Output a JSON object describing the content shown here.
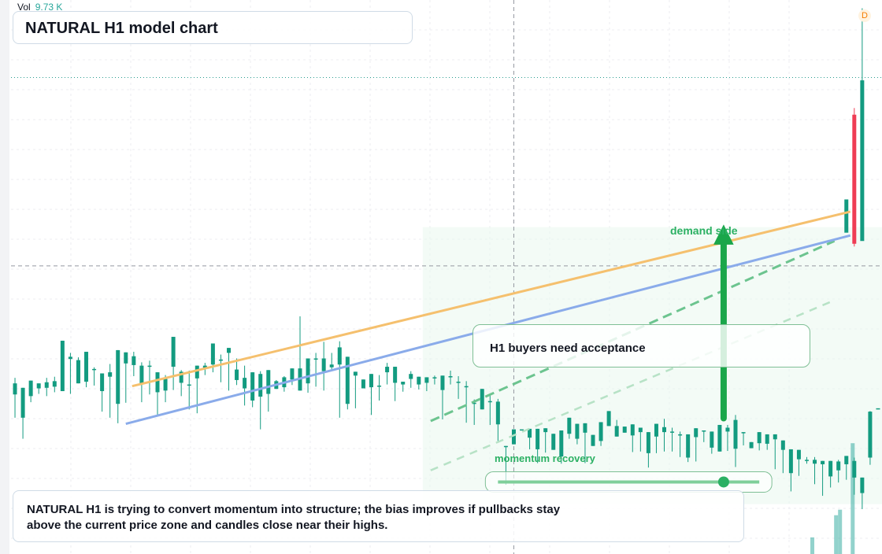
{
  "header": {
    "vol_label": "Vol",
    "vol_value": "9.73 K",
    "badge": "D",
    "title": "NATURAL H1 model chart"
  },
  "annotations": {
    "demand_label": "demand side",
    "momentum_label": "momentum recovery",
    "callout": "H1 buyers need acceptance",
    "description": "NATURAL H1 is trying to convert momentum into structure; the bias improves if pullbacks stay above the current price zone and candles close near their highs."
  },
  "colors": {
    "up": "#139b80",
    "down": "#ef3d54",
    "accent_green": "#1aa64a",
    "ma_orange": "#f5c06e",
    "ma_blue": "#8aabea"
  },
  "chart_data": {
    "type": "candlestick",
    "title": "NATURAL H1 model chart",
    "ylim": [
      0,
      100
    ],
    "xlim": [
      0,
      110
    ],
    "levels": [
      {
        "name": "dotted-resistance",
        "value": 86
      },
      {
        "name": "crosshair",
        "value": 52
      }
    ],
    "crosshair_x": 63.5,
    "lines": [
      {
        "name": "ma-orange",
        "points": [
          [
            15.3,
            30.3
          ],
          [
            106,
            61.8
          ]
        ]
      },
      {
        "name": "ma-blue",
        "points": [
          [
            14.5,
            23.5
          ],
          [
            106,
            57.5
          ]
        ]
      },
      {
        "name": "trend-upper",
        "points": [
          [
            53,
            24
          ],
          [
            104,
            56.5
          ]
        ]
      },
      {
        "name": "trend-lower",
        "points": [
          [
            53,
            15.1
          ],
          [
            104,
            45.8
          ]
        ]
      }
    ],
    "zones": [
      {
        "name": "demand-zone",
        "x": [
          52,
          110
        ],
        "y": [
          9,
          59
        ]
      }
    ],
    "arrows": [
      {
        "name": "demand-arrow",
        "x": 90,
        "from": 24.5,
        "to": 62
      }
    ],
    "support_markers": [
      {
        "name": "momentum-recovery-line",
        "x": [
          61.5,
          94.5
        ],
        "y": 13,
        "dot_x": 90
      }
    ],
    "candles": [
      [
        28.8,
        30.8,
        24.6,
        31.8
      ],
      [
        24.6,
        30.0,
        20.8,
        30.0
      ],
      [
        28.5,
        31.3,
        27.4,
        31.3
      ],
      [
        29.9,
        30.8,
        28.9,
        30.8
      ],
      [
        30.0,
        31.0,
        28.5,
        31.8
      ],
      [
        30.2,
        31.2,
        29.2,
        32.0
      ],
      [
        29.4,
        38.5,
        29.4,
        38.5
      ],
      [
        35.2,
        35.6,
        28.9,
        36.3
      ],
      [
        30.8,
        35.0,
        30.8,
        35.5
      ],
      [
        31.1,
        36.5,
        30.1,
        36.5
      ],
      [
        33.4,
        33.4,
        30.4,
        33.7
      ],
      [
        29.4,
        32.6,
        25.7,
        32.6
      ],
      [
        32.0,
        32.8,
        24.6,
        34.3
      ],
      [
        27.1,
        36.8,
        23.6,
        36.8
      ],
      [
        34.4,
        36.4,
        27.3,
        36.4
      ],
      [
        34.1,
        35.7,
        32.1,
        36.5
      ],
      [
        30.7,
        34.0,
        27.4,
        34.6
      ],
      [
        34.0,
        34.0,
        28.8,
        34.9
      ],
      [
        29.2,
        32.8,
        24.9,
        32.8
      ],
      [
        29.5,
        31.6,
        27.4,
        32.3
      ],
      [
        33.8,
        39.2,
        29.6,
        39.2
      ],
      [
        30.9,
        32.9,
        28.5,
        33.2
      ],
      [
        30.6,
        30.6,
        26.1,
        33.1
      ],
      [
        31.7,
        34.0,
        25.4,
        34.0
      ],
      [
        33.6,
        34.0,
        32.3,
        34.5
      ],
      [
        34.2,
        38.0,
        32.8,
        38.0
      ],
      [
        34.9,
        35.1,
        31.0,
        36.0
      ],
      [
        36.3,
        37.2,
        29.5,
        37.2
      ],
      [
        31.4,
        33.3,
        30.5,
        35.3
      ],
      [
        29.9,
        31.8,
        26.8,
        34.0
      ],
      [
        27.7,
        32.8,
        26.5,
        32.8
      ],
      [
        28.4,
        32.5,
        22.5,
        33.0
      ],
      [
        28.9,
        33.2,
        25.7,
        33.2
      ],
      [
        29.8,
        31.2,
        29.8,
        31.4
      ],
      [
        30.1,
        31.9,
        29.3,
        32.1
      ],
      [
        31.5,
        33.5,
        30.5,
        33.5
      ],
      [
        29.5,
        33.5,
        29.5,
        42.9
      ],
      [
        30.8,
        35.3,
        29.1,
        35.3
      ],
      [
        35.3,
        35.3,
        30.2,
        36.3
      ],
      [
        33.0,
        35.3,
        29.5,
        38.3
      ],
      [
        33.7,
        34.2,
        33.0,
        36.3
      ],
      [
        34.2,
        37.3,
        24.6,
        38.4
      ],
      [
        27.1,
        35.6,
        26.1,
        35.6
      ],
      [
        32.2,
        32.9,
        26.3,
        32.9
      ],
      [
        29.9,
        31.5,
        29.9,
        31.5
      ],
      [
        30.1,
        32.5,
        25.1,
        32.5
      ],
      [
        30.4,
        30.4,
        27.7,
        32.3
      ],
      [
        32.8,
        33.8,
        30.6,
        34.5
      ],
      [
        30.9,
        33.8,
        27.6,
        33.8
      ],
      [
        30.6,
        31.1,
        29.3,
        31.1
      ],
      [
        31.6,
        32.5,
        30.0,
        33.0
      ],
      [
        30.6,
        32.0,
        29.7,
        32.0
      ],
      [
        30.9,
        31.9,
        29.4,
        31.9
      ],
      [
        31.9,
        31.9,
        30.6,
        32.2
      ],
      [
        29.6,
        32.2,
        24.3,
        32.2
      ],
      [
        32.1,
        32.1,
        30.6,
        33.1
      ],
      [
        31.1,
        31.1,
        28.0,
        32.1
      ],
      [
        30.3,
        30.3,
        23.7,
        31.2
      ],
      [
        27.3,
        27.3,
        23.3,
        27.9
      ],
      [
        26.1,
        29.8,
        26.1,
        29.8
      ],
      [
        27.6,
        27.6,
        23.3,
        28.7
      ],
      [
        23.4,
        27.5,
        20.4,
        28.0
      ],
      [
        19.5,
        19.5,
        12.5,
        19.5
      ],
      [
        19.8,
        22.5,
        19.8,
        22.5
      ],
      [
        22.5,
        22.5,
        22.5,
        22.5
      ],
      [
        21.0,
        22.6,
        18.9,
        22.6
      ],
      [
        18.9,
        22.6,
        16.4,
        22.6
      ],
      [
        22.0,
        22.7,
        18.3,
        22.7
      ],
      [
        18.8,
        21.7,
        18.8,
        21.7
      ],
      [
        17.6,
        22.3,
        16.3,
        22.3
      ],
      [
        21.7,
        24.6,
        20.8,
        24.6
      ],
      [
        20.8,
        23.5,
        19.8,
        23.5
      ],
      [
        21.9,
        23.6,
        16.4,
        23.6
      ],
      [
        19.5,
        21.5,
        19.5,
        21.5
      ],
      [
        20.4,
        23.8,
        19.5,
        23.8
      ],
      [
        23.1,
        25.8,
        23.1,
        25.8
      ],
      [
        21.2,
        23.1,
        21.2,
        24.2
      ],
      [
        21.9,
        23.0,
        21.9,
        23.0
      ],
      [
        21.4,
        23.4,
        18.4,
        23.4
      ],
      [
        22.0,
        22.8,
        18.5,
        22.8
      ],
      [
        18.2,
        22.0,
        15.6,
        22.0
      ],
      [
        21.2,
        23.5,
        18.2,
        23.5
      ],
      [
        22.0,
        22.9,
        18.5,
        24.4
      ],
      [
        22.1,
        22.1,
        18.5,
        22.8
      ],
      [
        21.6,
        21.6,
        17.5,
        22.1
      ],
      [
        17.4,
        21.6,
        16.6,
        21.6
      ],
      [
        21.1,
        22.7,
        16.7,
        22.7
      ],
      [
        22.3,
        22.3,
        20.2,
        22.3
      ],
      [
        19.2,
        22.1,
        18.1,
        22.1
      ],
      [
        18.5,
        23.3,
        18.5,
        23.3
      ],
      [
        22.1,
        22.8,
        18.6,
        23.3
      ],
      [
        19.0,
        24.2,
        15.7,
        25.1
      ],
      [
        22.0,
        22.0,
        19.6,
        22.0
      ],
      [
        19.1,
        20.2,
        19.1,
        20.2
      ],
      [
        20.0,
        22.0,
        18.7,
        22.0
      ],
      [
        19.9,
        21.6,
        18.8,
        21.6
      ],
      [
        20.7,
        21.6,
        15.3,
        21.6
      ],
      [
        18.8,
        20.5,
        14.6,
        20.5
      ],
      [
        14.6,
        18.9,
        11.3,
        18.9
      ],
      [
        17.1,
        18.8,
        14.1,
        18.8
      ],
      [
        17.0,
        17.0,
        16.3,
        17.5
      ],
      [
        16.3,
        17.0,
        12.6,
        17.5
      ],
      [
        16.2,
        16.8,
        10.5,
        16.8
      ],
      [
        14.0,
        16.8,
        12.0,
        16.8
      ],
      [
        15.1,
        16.7,
        12.9,
        17.0
      ],
      [
        16.2,
        17.7,
        13.4,
        17.7
      ],
      [
        13.8,
        16.8,
        10.7,
        17.4
      ],
      [
        11.0,
        13.8,
        8.1,
        13.8
      ],
      [
        17.4,
        25.7,
        16.1,
        25.8
      ],
      [
        26.3,
        26.3,
        26.3,
        26.3
      ]
    ]
  }
}
